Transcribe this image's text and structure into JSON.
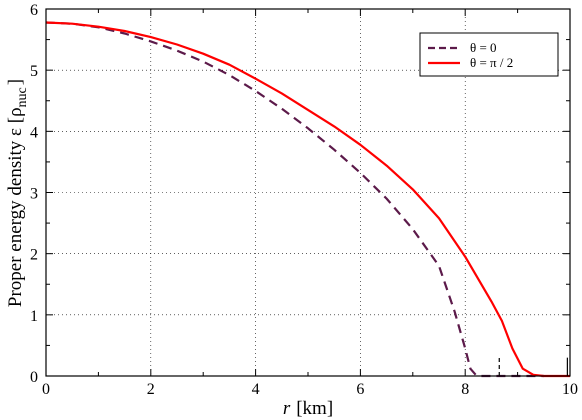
{
  "chart_data": {
    "type": "line",
    "title": "",
    "xlabel_var": "r",
    "xlabel_unit": "[km]",
    "ylabel_main": "Proper energy density  ε  [ρ",
    "ylabel_sub": "nuc",
    "ylabel_close": "]",
    "xlim": [
      0,
      10
    ],
    "ylim": [
      0,
      6
    ],
    "xticks": [
      "0",
      "2",
      "4",
      "6",
      "8",
      "10"
    ],
    "yticks": [
      "0",
      "1",
      "2",
      "3",
      "4",
      "5",
      "6"
    ],
    "grid": true,
    "legend_position": "top-right",
    "series": [
      {
        "name": "θ = 0",
        "color": "#5c1a4a",
        "style": "dashed",
        "points": [
          [
            0,
            5.78
          ],
          [
            0.5,
            5.76
          ],
          [
            1,
            5.7
          ],
          [
            1.5,
            5.6
          ],
          [
            2,
            5.47
          ],
          [
            2.5,
            5.32
          ],
          [
            3,
            5.14
          ],
          [
            3.5,
            4.92
          ],
          [
            4,
            4.66
          ],
          [
            4.5,
            4.37
          ],
          [
            5,
            4.05
          ],
          [
            5.5,
            3.7
          ],
          [
            6,
            3.32
          ],
          [
            6.5,
            2.9
          ],
          [
            7,
            2.4
          ],
          [
            7.5,
            1.8
          ],
          [
            7.8,
            1.05
          ],
          [
            8.0,
            0.45
          ],
          [
            8.1,
            0.12
          ],
          [
            8.2,
            0.02
          ],
          [
            8.3,
            0.0
          ],
          [
            9.5,
            0.0
          ]
        ]
      },
      {
        "name": "θ = π / 2",
        "color": "#ff0000",
        "style": "solid",
        "points": [
          [
            0,
            5.78
          ],
          [
            0.5,
            5.76
          ],
          [
            1,
            5.71
          ],
          [
            1.5,
            5.64
          ],
          [
            2,
            5.54
          ],
          [
            2.5,
            5.42
          ],
          [
            3,
            5.27
          ],
          [
            3.5,
            5.09
          ],
          [
            4,
            4.86
          ],
          [
            4.5,
            4.62
          ],
          [
            5,
            4.35
          ],
          [
            5.5,
            4.08
          ],
          [
            6,
            3.78
          ],
          [
            6.5,
            3.44
          ],
          [
            7,
            3.05
          ],
          [
            7.5,
            2.58
          ],
          [
            8,
            1.95
          ],
          [
            8.5,
            1.22
          ],
          [
            8.7,
            0.9
          ],
          [
            8.9,
            0.45
          ],
          [
            9.1,
            0.12
          ],
          [
            9.3,
            0.02
          ],
          [
            9.5,
            0.0
          ],
          [
            10,
            0.0
          ]
        ]
      }
    ],
    "markers": [
      8.65,
      9.95
    ]
  }
}
